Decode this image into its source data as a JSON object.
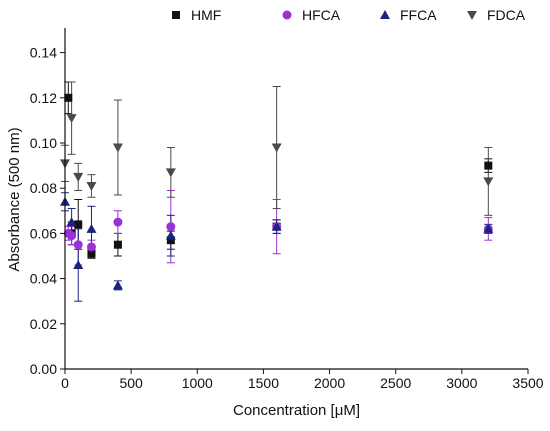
{
  "chart_data": {
    "type": "scatter",
    "title": "",
    "xlabel": "Concentration [μM]",
    "ylabel": "Absorbance (500 nm)",
    "xlim": [
      0,
      3500
    ],
    "ylim": [
      0.0,
      0.15
    ],
    "xticks": [
      0,
      500,
      1000,
      1500,
      2000,
      2500,
      3000,
      3500
    ],
    "xtick_labels": [
      "0",
      "500",
      "1000",
      "1500",
      "2000",
      "2500",
      "3000",
      "3500"
    ],
    "yticks": [
      0.0,
      0.02,
      0.04,
      0.06,
      0.08,
      0.1,
      0.12,
      0.14
    ],
    "ytick_labels": [
      "0.00",
      "0.02",
      "0.04",
      "0.06",
      "0.08",
      "0.10",
      "0.12",
      "0.14"
    ],
    "grid": false,
    "legend_position": "top",
    "series": [
      {
        "name": "HMF",
        "marker": "square",
        "color": "#111111",
        "points": [
          {
            "x": 25,
            "y": 0.12,
            "err": 0.007
          },
          {
            "x": 50,
            "y": 0.06,
            "err": 0.005
          },
          {
            "x": 100,
            "y": 0.064,
            "err": 0.011
          },
          {
            "x": 200,
            "y": 0.051,
            "err": 0.002
          },
          {
            "x": 400,
            "y": 0.055,
            "err": 0.005
          },
          {
            "x": 800,
            "y": 0.057,
            "err": 0.004
          },
          {
            "x": 1600,
            "y": 0.063,
            "err": 0.003
          },
          {
            "x": 3200,
            "y": 0.09,
            "err": 0.003
          }
        ]
      },
      {
        "name": "HFCA",
        "marker": "circle",
        "color": "#9b30d9",
        "points": [
          {
            "x": 25,
            "y": 0.06,
            "err": 0.003
          },
          {
            "x": 50,
            "y": 0.059,
            "err": 0.004
          },
          {
            "x": 100,
            "y": 0.055,
            "err": 0.009
          },
          {
            "x": 200,
            "y": 0.054,
            "err": 0.003
          },
          {
            "x": 400,
            "y": 0.065,
            "err": 0.005
          },
          {
            "x": 800,
            "y": 0.063,
            "err": 0.016
          },
          {
            "x": 1600,
            "y": 0.063,
            "err": 0.012
          },
          {
            "x": 3200,
            "y": 0.062,
            "err": 0.005
          }
        ]
      },
      {
        "name": "FFCA",
        "marker": "triangle-up",
        "color": "#1a237e",
        "points": [
          {
            "x": 0,
            "y": 0.074,
            "err": 0.004
          },
          {
            "x": 50,
            "y": 0.065,
            "err": 0.006
          },
          {
            "x": 100,
            "y": 0.046,
            "err": 0.016
          },
          {
            "x": 200,
            "y": 0.062,
            "err": 0.01
          },
          {
            "x": 400,
            "y": 0.037,
            "err": 0.002
          },
          {
            "x": 800,
            "y": 0.059,
            "err": 0.009
          },
          {
            "x": 1600,
            "y": 0.063,
            "err": 0.003
          },
          {
            "x": 3200,
            "y": 0.062,
            "err": 0.002
          }
        ]
      },
      {
        "name": "FDCA",
        "marker": "triangle-down",
        "color": "#4a4a4a",
        "points": [
          {
            "x": 0,
            "y": 0.091,
            "err": 0.008
          },
          {
            "x": 50,
            "y": 0.111,
            "err": 0.016
          },
          {
            "x": 100,
            "y": 0.085,
            "err": 0.006
          },
          {
            "x": 200,
            "y": 0.081,
            "err": 0.005
          },
          {
            "x": 400,
            "y": 0.098,
            "err": 0.021
          },
          {
            "x": 800,
            "y": 0.087,
            "err": 0.011
          },
          {
            "x": 1600,
            "y": 0.098,
            "err": 0.027
          },
          {
            "x": 3200,
            "y": 0.083,
            "err": 0.015
          }
        ]
      }
    ]
  }
}
